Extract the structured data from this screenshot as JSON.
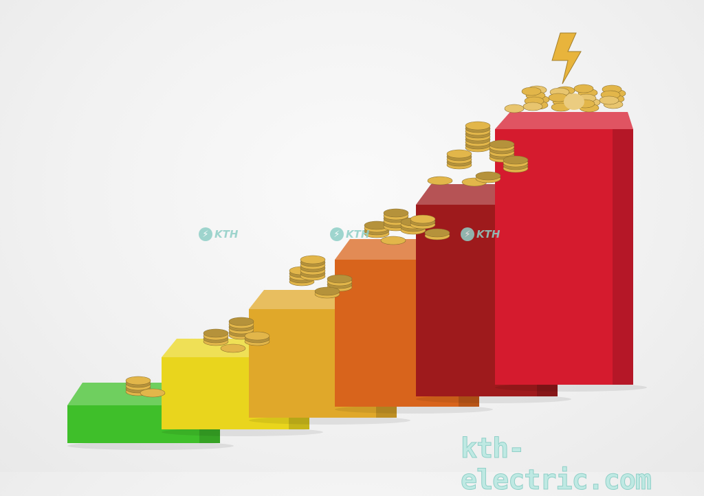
{
  "scene": {
    "subject": "rising bar steps with gold coin stacks",
    "bar_colors": [
      "#3fbf2a",
      "#e9d51d",
      "#e0a82a",
      "#d8641c",
      "#9e1a1c",
      "#d51b2e"
    ],
    "coin_color": "#e2b64a",
    "bolt_color": "#e8b43c"
  },
  "watermarks": {
    "logo_text": [
      "KTH",
      "KTH",
      "KTH"
    ],
    "logo_icon": "lightning-icon",
    "site": "kth-electric.com"
  }
}
